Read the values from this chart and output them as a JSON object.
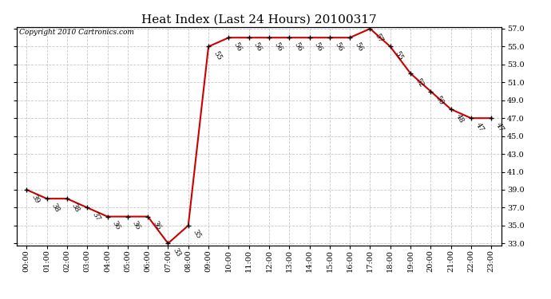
{
  "title": "Heat Index (Last 24 Hours) 20100317",
  "copyright": "Copyright 2010 Cartronics.com",
  "hours": [
    "00:00",
    "01:00",
    "02:00",
    "03:00",
    "04:00",
    "05:00",
    "06:00",
    "07:00",
    "08:00",
    "09:00",
    "10:00",
    "11:00",
    "12:00",
    "13:00",
    "14:00",
    "15:00",
    "16:00",
    "17:00",
    "18:00",
    "19:00",
    "20:00",
    "21:00",
    "22:00",
    "23:00"
  ],
  "values": [
    39,
    38,
    38,
    37,
    36,
    36,
    36,
    33,
    35,
    55,
    56,
    56,
    56,
    56,
    56,
    56,
    56,
    57,
    55,
    52,
    50,
    48,
    47,
    47
  ],
  "ylim_min": 33.0,
  "ylim_max": 57.0,
  "yticks": [
    33.0,
    35.0,
    37.0,
    39.0,
    41.0,
    43.0,
    45.0,
    47.0,
    49.0,
    51.0,
    53.0,
    55.0,
    57.0
  ],
  "line_color": "#cc0000",
  "marker_color": "#000000",
  "bg_color": "#ffffff",
  "grid_color": "#c8c8c8",
  "title_fontsize": 11,
  "label_fontsize": 6.5,
  "tick_fontsize": 7,
  "copyright_fontsize": 6.5
}
